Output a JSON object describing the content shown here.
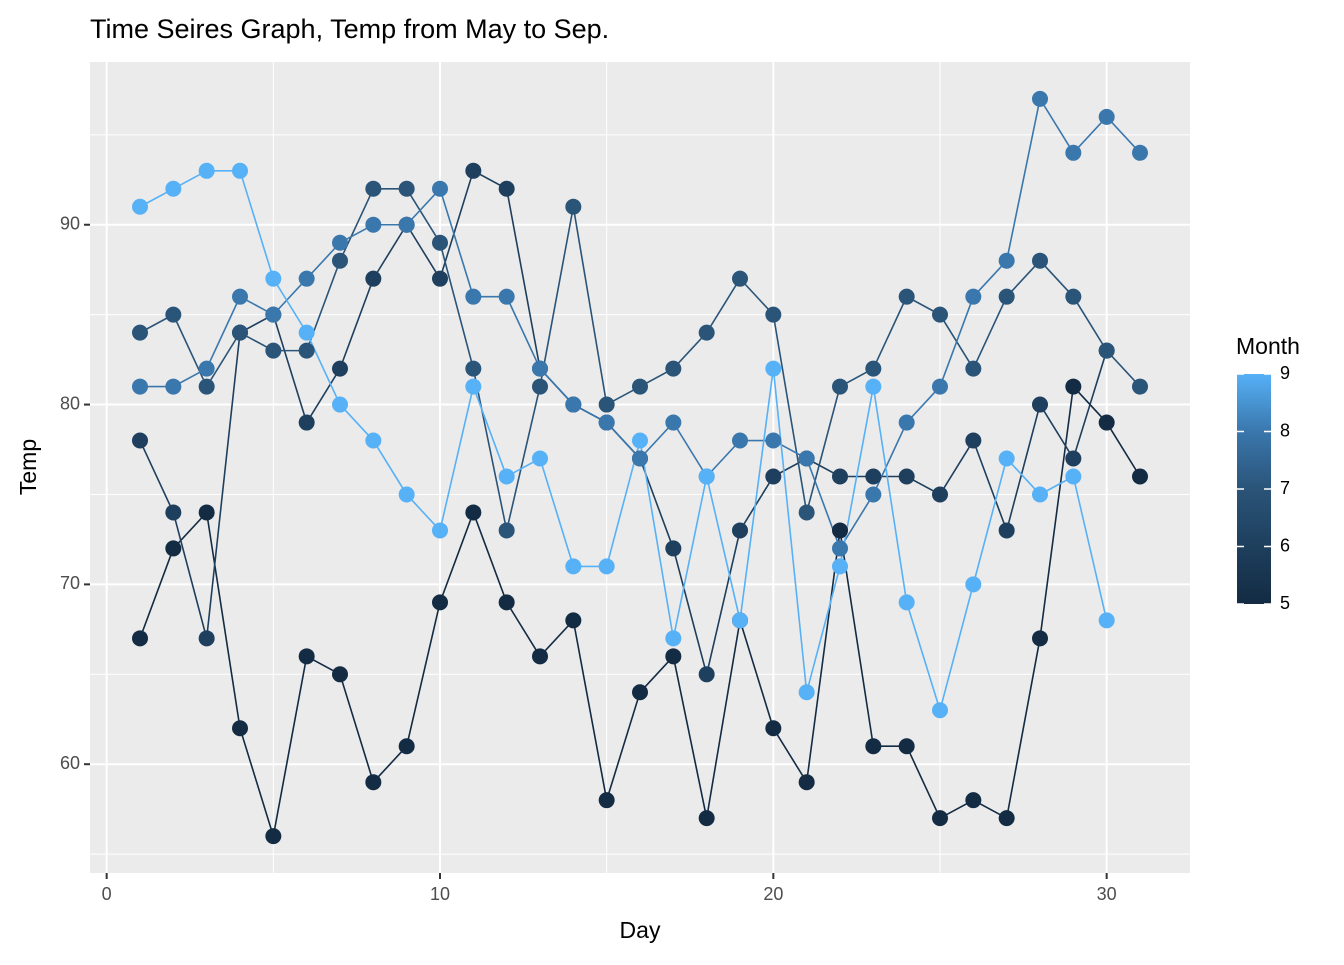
{
  "chart_data": {
    "type": "line",
    "title": "Time Seires Graph, Temp from May to Sep.",
    "x_label": "Day",
    "y_label": "Temp",
    "legend_title": "Month",
    "x": [
      1,
      2,
      3,
      4,
      5,
      6,
      7,
      8,
      9,
      10,
      11,
      12,
      13,
      14,
      15,
      16,
      17,
      18,
      19,
      20,
      21,
      22,
      23,
      24,
      25,
      26,
      27,
      28,
      29,
      30,
      31
    ],
    "series": [
      {
        "name": "5",
        "color": "#132B43",
        "values": [
          67,
          72,
          74,
          62,
          56,
          66,
          65,
          59,
          61,
          69,
          74,
          69,
          66,
          68,
          58,
          64,
          66,
          57,
          68,
          62,
          59,
          73,
          61,
          61,
          57,
          58,
          57,
          67,
          81,
          79,
          76
        ]
      },
      {
        "name": "6",
        "color": "#1E3F5D",
        "values": [
          78,
          74,
          67,
          84,
          85,
          79,
          82,
          87,
          90,
          87,
          93,
          92,
          82,
          80,
          79,
          77,
          72,
          65,
          73,
          76,
          77,
          76,
          76,
          76,
          75,
          78,
          73,
          80,
          77,
          83,
          null
        ]
      },
      {
        "name": "7",
        "color": "#2A5478",
        "values": [
          84,
          85,
          81,
          84,
          83,
          83,
          88,
          92,
          92,
          89,
          82,
          73,
          81,
          91,
          80,
          81,
          82,
          84,
          87,
          85,
          74,
          81,
          82,
          86,
          85,
          82,
          86,
          88,
          86,
          83,
          81
        ]
      },
      {
        "name": "8",
        "color": "#3A77AD",
        "values": [
          81,
          81,
          82,
          86,
          85,
          87,
          89,
          90,
          90,
          92,
          86,
          86,
          82,
          80,
          79,
          77,
          79,
          76,
          78,
          78,
          77,
          72,
          75,
          79,
          81,
          86,
          88,
          97,
          94,
          96,
          94
        ]
      },
      {
        "name": "9",
        "color": "#56B1F7",
        "values": [
          91,
          92,
          93,
          93,
          87,
          84,
          80,
          78,
          75,
          73,
          81,
          76,
          77,
          71,
          71,
          78,
          67,
          76,
          68,
          82,
          64,
          71,
          81,
          69,
          63,
          70,
          77,
          75,
          76,
          68,
          null
        ]
      }
    ],
    "xlim": [
      -0.5,
      32.5
    ],
    "xticks": [
      0,
      10,
      20,
      30
    ],
    "ylim": [
      53.95,
      99.05
    ],
    "yticks": [
      60,
      70,
      80,
      90
    ],
    "grid": true
  }
}
